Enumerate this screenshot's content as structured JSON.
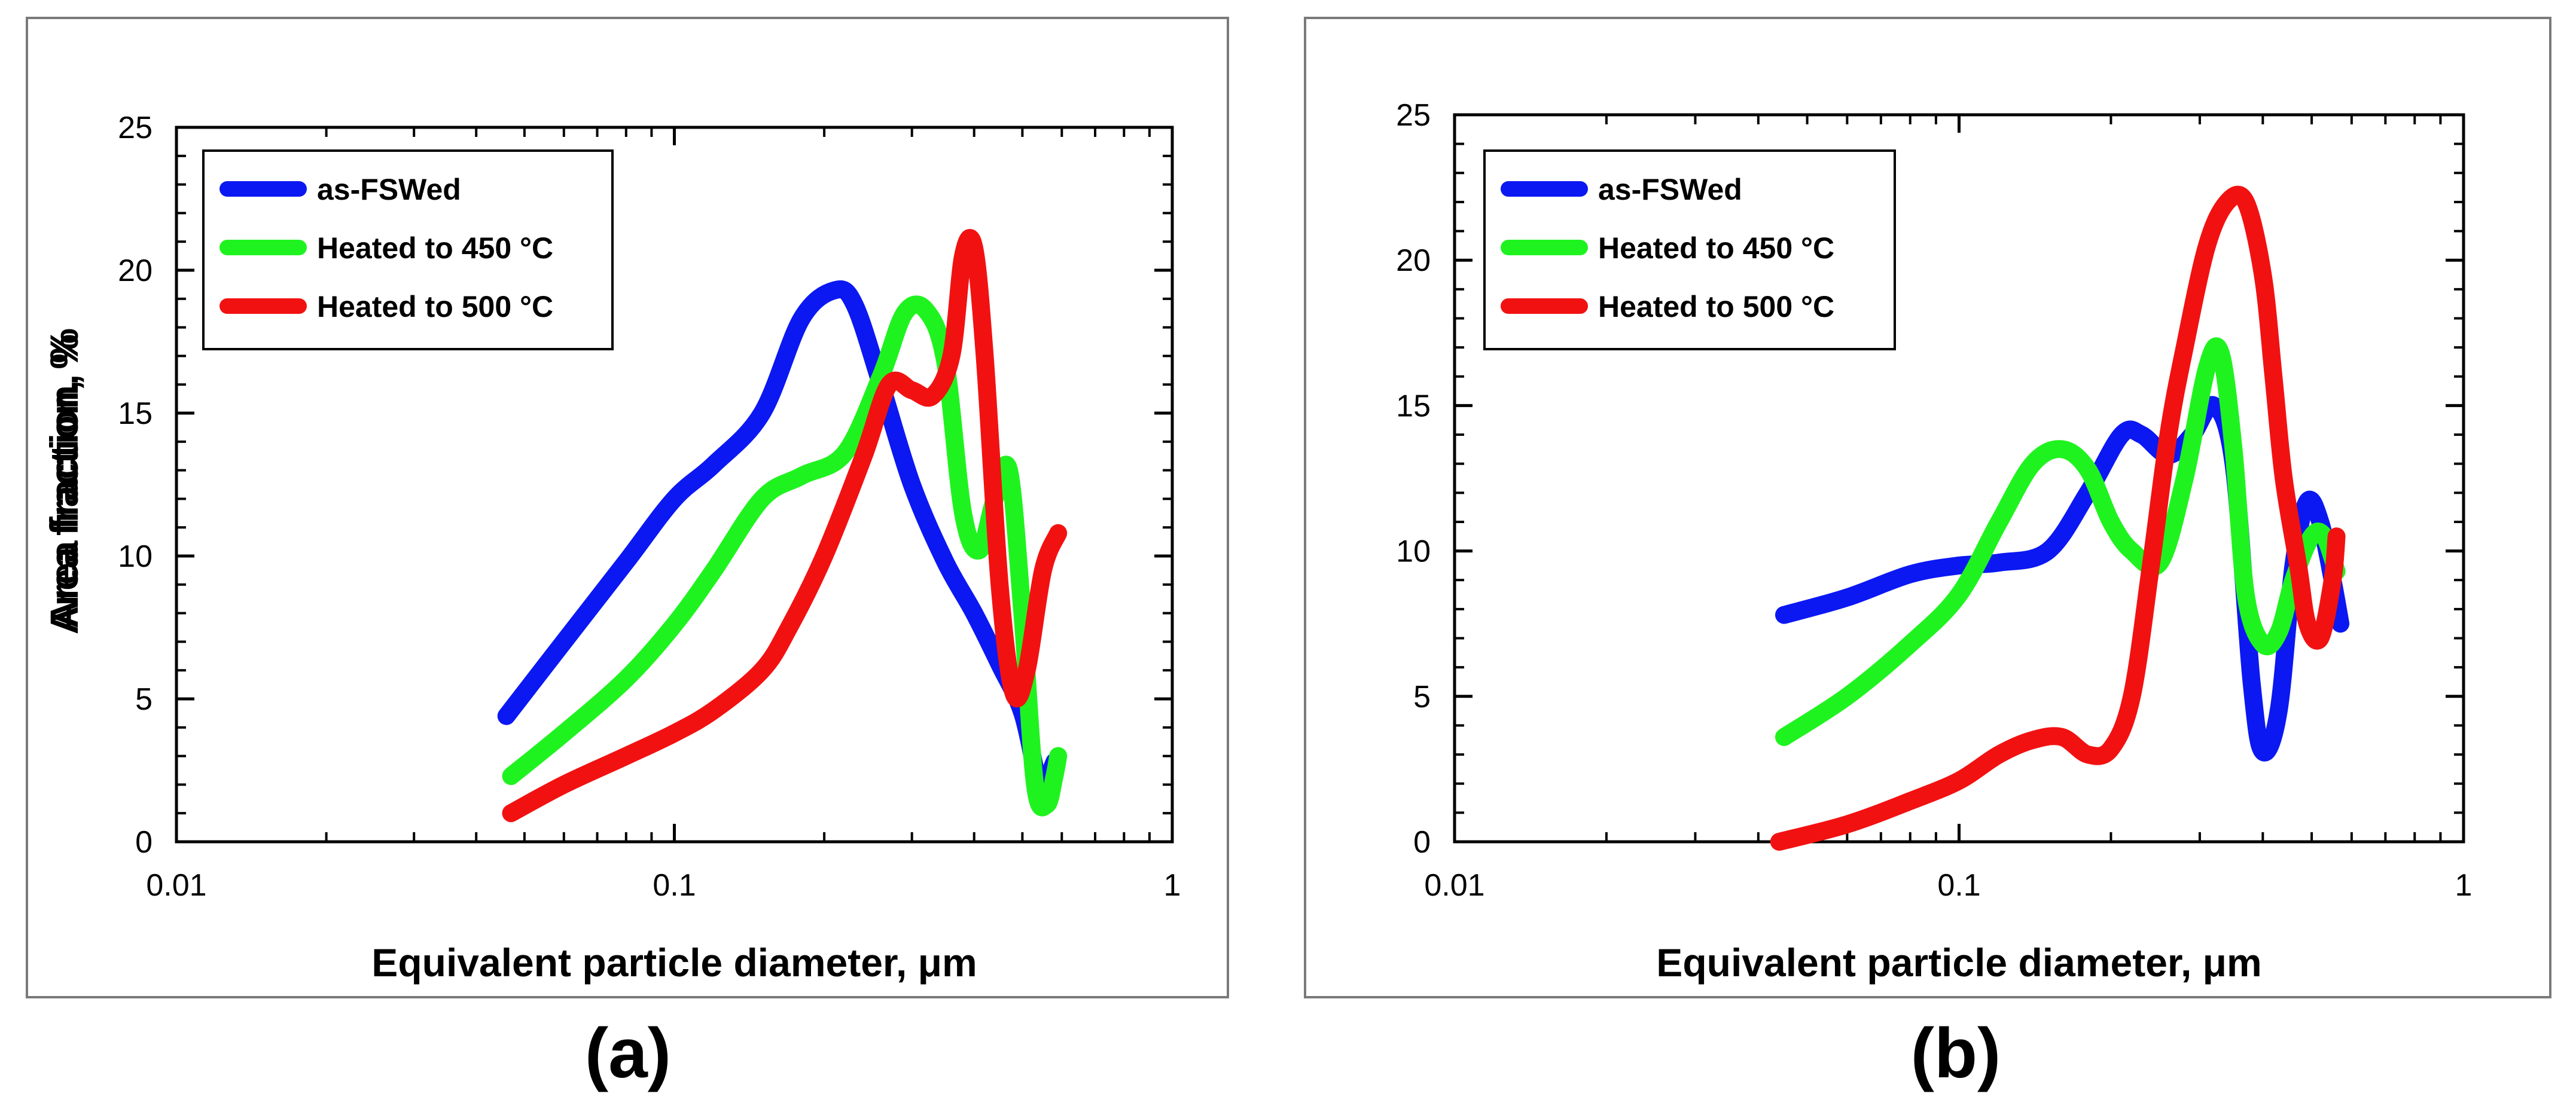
{
  "figure": {
    "panel_labels": [
      "(a)",
      "(b)"
    ],
    "colors": {
      "as_fswed": "#0b18f2",
      "heated_450": "#1ff31f",
      "heated_500": "#f21111",
      "frame": "#000000",
      "border": "#7a7a7a"
    }
  },
  "chart_data": [
    {
      "type": "line",
      "panel": "(a)",
      "title": "",
      "xlabel": "Equivalent particle diameter, μm",
      "ylabel": "Area fraction, %",
      "xscale": "log",
      "xlim": [
        0.01,
        1
      ],
      "ylim": [
        0,
        25
      ],
      "xticks": [
        0.01,
        0.1,
        1
      ],
      "xtick_labels": [
        "0.01",
        "0.1",
        "1"
      ],
      "yticks": [
        0,
        5,
        10,
        15,
        20,
        25
      ],
      "ytick_labels": [
        "0",
        "5",
        "10",
        "15",
        "20",
        "25"
      ],
      "legend": {
        "location": "top-left",
        "entries": [
          "as-FSWed",
          "Heated to 450 °C",
          "Heated to 500 °C"
        ]
      },
      "series": [
        {
          "name": "as-FSWed",
          "color": "#0b18f2",
          "x": [
            0.046,
            0.06,
            0.08,
            0.1,
            0.12,
            0.15,
            0.18,
            0.21,
            0.23,
            0.26,
            0.3,
            0.35,
            0.4,
            0.45,
            0.5,
            0.54,
            0.56,
            0.58
          ],
          "y": [
            4.4,
            7.0,
            9.8,
            12.0,
            13.2,
            15.0,
            18.3,
            19.3,
            18.8,
            16.0,
            12.5,
            9.8,
            8.0,
            6.2,
            4.5,
            2.0,
            2.2,
            2.8
          ]
        },
        {
          "name": "Heated to 450 °C",
          "color": "#1ff31f",
          "x": [
            0.047,
            0.06,
            0.08,
            0.1,
            0.12,
            0.15,
            0.18,
            0.22,
            0.26,
            0.29,
            0.32,
            0.35,
            0.38,
            0.41,
            0.44,
            0.47,
            0.5,
            0.53,
            0.56,
            0.58,
            0.59
          ],
          "y": [
            2.3,
            3.8,
            5.7,
            7.6,
            9.5,
            12.0,
            12.8,
            13.6,
            16.3,
            18.5,
            18.6,
            16.8,
            11.5,
            10.2,
            12.0,
            13.0,
            8.0,
            2.0,
            1.3,
            2.3,
            3.0
          ]
        },
        {
          "name": "Heated to 500 °C",
          "color": "#f21111",
          "x": [
            0.047,
            0.06,
            0.08,
            0.1,
            0.12,
            0.15,
            0.17,
            0.2,
            0.24,
            0.27,
            0.3,
            0.33,
            0.36,
            0.38,
            0.4,
            0.42,
            0.45,
            0.48,
            0.51,
            0.55,
            0.59
          ],
          "y": [
            1.0,
            2.0,
            3.0,
            3.8,
            4.6,
            6.0,
            7.5,
            10.0,
            13.5,
            16.0,
            15.8,
            15.6,
            17.0,
            20.5,
            20.8,
            17.0,
            9.0,
            5.2,
            6.0,
            9.5,
            10.8
          ]
        }
      ]
    },
    {
      "type": "line",
      "panel": "(b)",
      "title": "",
      "xlabel": "Equivalent particle diameter, μm",
      "ylabel": "Area fraction, %",
      "xscale": "log",
      "xlim": [
        0.01,
        1
      ],
      "ylim": [
        0,
        25
      ],
      "xticks": [
        0.01,
        0.1,
        1
      ],
      "xtick_labels": [
        "0.01",
        "0.1",
        "1"
      ],
      "yticks": [
        0,
        5,
        10,
        15,
        20,
        25
      ],
      "ytick_labels": [
        "0",
        "5",
        "10",
        "15",
        "20",
        "25"
      ],
      "legend": {
        "location": "top-left",
        "entries": [
          "as-FSWed",
          "Heated to 450 °C",
          "Heated to 500 °C"
        ]
      },
      "series": [
        {
          "name": "as-FSWed",
          "color": "#0b18f2",
          "x": [
            0.045,
            0.06,
            0.08,
            0.1,
            0.12,
            0.15,
            0.18,
            0.21,
            0.23,
            0.26,
            0.29,
            0.32,
            0.35,
            0.38,
            0.4,
            0.43,
            0.46,
            0.49,
            0.52,
            0.55,
            0.57
          ],
          "y": [
            7.8,
            8.4,
            9.2,
            9.5,
            9.6,
            10.0,
            12.0,
            14.0,
            14.0,
            13.3,
            14.0,
            15.0,
            13.0,
            5.5,
            3.1,
            4.5,
            9.5,
            11.7,
            11.0,
            9.0,
            7.5
          ]
        },
        {
          "name": "Heated to 450 °C",
          "color": "#1ff31f",
          "x": [
            0.045,
            0.06,
            0.08,
            0.1,
            0.12,
            0.14,
            0.16,
            0.18,
            0.2,
            0.22,
            0.25,
            0.28,
            0.31,
            0.33,
            0.35,
            0.37,
            0.4,
            0.43,
            0.46,
            0.5,
            0.53,
            0.56
          ],
          "y": [
            3.6,
            5.0,
            6.8,
            8.5,
            11.0,
            13.0,
            13.5,
            12.8,
            11.0,
            10.0,
            9.6,
            12.5,
            16.3,
            16.8,
            13.5,
            8.5,
            6.8,
            7.2,
            9.0,
            10.5,
            10.5,
            9.3
          ]
        },
        {
          "name": "Heated to 500 °C",
          "color": "#f21111",
          "x": [
            0.044,
            0.06,
            0.08,
            0.1,
            0.12,
            0.14,
            0.16,
            0.18,
            0.2,
            0.22,
            0.24,
            0.26,
            0.28,
            0.31,
            0.34,
            0.37,
            0.4,
            0.42,
            0.44,
            0.47,
            0.49,
            0.52,
            0.55,
            0.56
          ],
          "y": [
            0.0,
            0.6,
            1.4,
            2.1,
            3.0,
            3.5,
            3.6,
            3.0,
            3.2,
            5.0,
            9.5,
            14.0,
            17.0,
            20.5,
            22.0,
            22.0,
            19.5,
            16.0,
            12.5,
            9.5,
            7.5,
            7.0,
            9.0,
            10.5
          ]
        }
      ]
    }
  ]
}
